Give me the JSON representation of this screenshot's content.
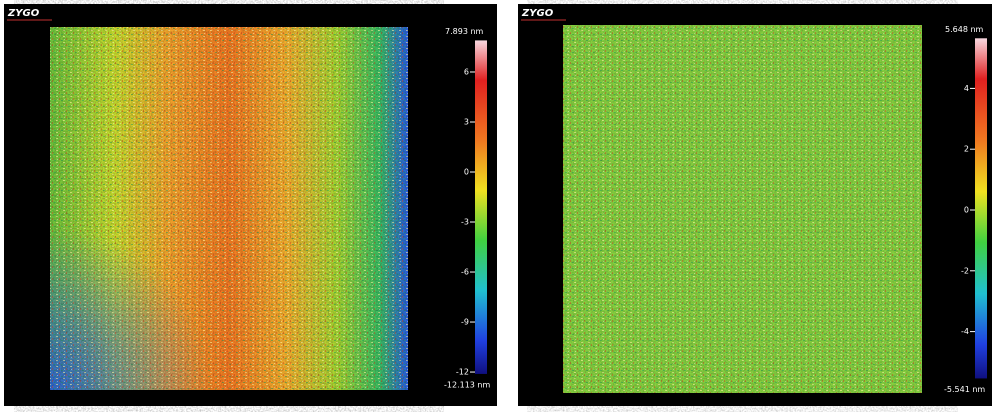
{
  "panels": [
    {
      "logo": "ZYGO",
      "scale_max": {
        "value": 7.893,
        "label": "7.893 nm"
      },
      "scale_min": {
        "value": -12.113,
        "label": "-12.113 nm"
      },
      "ticks": [
        6,
        3,
        0,
        -3,
        -6,
        -9,
        -12
      ]
    },
    {
      "logo": "ZYGO",
      "scale_max": {
        "value": 5.648,
        "label": "5.648 nm"
      },
      "scale_min": {
        "value": -5.541,
        "label": "-5.541 nm"
      },
      "ticks": [
        4,
        2,
        0,
        -2,
        -4
      ]
    }
  ]
}
